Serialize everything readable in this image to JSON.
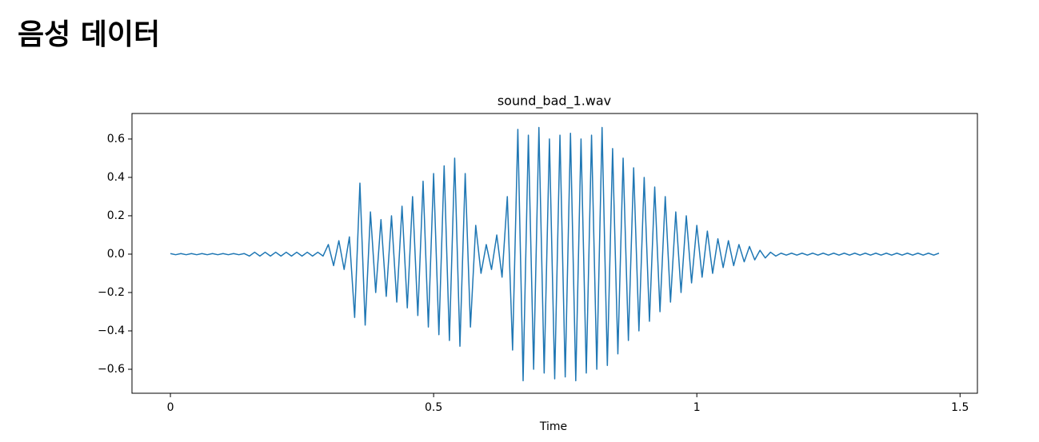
{
  "header": {
    "title": "음성 데이터"
  },
  "chart_data": {
    "type": "line",
    "title": "sound_bad_1.wav",
    "xlabel": "Time",
    "xlim": [
      -0.073,
      1.533
    ],
    "ylim": [
      -0.725,
      0.733
    ],
    "xticks": [
      0,
      0.5,
      1,
      1.5
    ],
    "yticks": [
      {
        "value": -0.6,
        "label": "−0.6"
      },
      {
        "value": -0.4,
        "label": "−0.4"
      },
      {
        "value": -0.2,
        "label": "−0.2"
      },
      {
        "value": 0,
        "label": "0.0"
      },
      0.2,
      0.4,
      0.6
    ],
    "grid": false,
    "series": [
      {
        "color": "#1f77b4",
        "x": [
          0,
          0.01,
          0.02,
          0.03,
          0.04,
          0.05,
          0.06,
          0.07,
          0.08,
          0.09,
          0.1,
          0.11,
          0.12,
          0.13,
          0.14,
          0.15,
          0.16,
          0.17,
          0.18,
          0.19,
          0.2,
          0.21,
          0.22,
          0.23,
          0.24,
          0.25,
          0.26,
          0.27,
          0.28,
          0.29,
          0.3,
          0.31,
          0.32,
          0.33,
          0.34,
          0.35,
          0.36,
          0.37,
          0.38,
          0.39,
          0.4,
          0.41,
          0.42,
          0.43,
          0.44,
          0.45,
          0.46,
          0.47,
          0.48,
          0.49,
          0.5,
          0.51,
          0.52,
          0.53,
          0.54,
          0.55,
          0.56,
          0.57,
          0.58,
          0.59,
          0.6,
          0.61,
          0.62,
          0.63,
          0.64,
          0.65,
          0.66,
          0.67,
          0.68,
          0.69,
          0.7,
          0.71,
          0.72,
          0.73,
          0.74,
          0.75,
          0.76,
          0.77,
          0.78,
          0.79,
          0.8,
          0.81,
          0.82,
          0.83,
          0.84,
          0.85,
          0.86,
          0.87,
          0.88,
          0.89,
          0.9,
          0.91,
          0.92,
          0.93,
          0.94,
          0.95,
          0.96,
          0.97,
          0.98,
          0.99,
          1,
          1.01,
          1.02,
          1.03,
          1.04,
          1.05,
          1.06,
          1.07,
          1.08,
          1.09,
          1.1,
          1.11,
          1.12,
          1.13,
          1.14,
          1.15,
          1.16,
          1.17,
          1.18,
          1.19,
          1.2,
          1.21,
          1.22,
          1.23,
          1.24,
          1.25,
          1.26,
          1.27,
          1.28,
          1.29,
          1.3,
          1.31,
          1.32,
          1.33,
          1.34,
          1.35,
          1.36,
          1.37,
          1.38,
          1.39,
          1.4,
          1.41,
          1.42,
          1.43,
          1.44,
          1.45,
          1.46
        ],
        "values": [
          0.003,
          -0.003,
          0.003,
          -0.003,
          0.003,
          -0.003,
          0.003,
          -0.003,
          0.003,
          -0.003,
          0.003,
          -0.003,
          0.003,
          -0.003,
          0.003,
          -0.01,
          0.01,
          -0.01,
          0.01,
          -0.01,
          0.01,
          -0.01,
          0.01,
          -0.01,
          0.01,
          -0.01,
          0.01,
          -0.01,
          0.01,
          -0.01,
          0.05,
          -0.06,
          0.07,
          -0.08,
          0.09,
          -0.33,
          0.37,
          -0.37,
          0.22,
          -0.2,
          0.18,
          -0.22,
          0.2,
          -0.25,
          0.25,
          -0.28,
          0.3,
          -0.32,
          0.38,
          -0.38,
          0.42,
          -0.42,
          0.46,
          -0.45,
          0.5,
          -0.48,
          0.42,
          -0.38,
          0.15,
          -0.1,
          0.05,
          -0.08,
          0.1,
          -0.12,
          0.3,
          -0.5,
          0.65,
          -0.66,
          0.62,
          -0.6,
          0.66,
          -0.62,
          0.6,
          -0.65,
          0.62,
          -0.64,
          0.63,
          -0.66,
          0.6,
          -0.62,
          0.62,
          -0.6,
          0.66,
          -0.58,
          0.55,
          -0.52,
          0.5,
          -0.45,
          0.45,
          -0.4,
          0.4,
          -0.35,
          0.35,
          -0.3,
          0.3,
          -0.25,
          0.22,
          -0.2,
          0.2,
          -0.15,
          0.15,
          -0.12,
          0.12,
          -0.1,
          0.08,
          -0.07,
          0.07,
          -0.06,
          0.05,
          -0.04,
          0.04,
          -0.03,
          0.02,
          -0.02,
          0.01,
          -0.01,
          0.005,
          -0.005,
          0.005,
          -0.005,
          0.005,
          -0.005,
          0.005,
          -0.005,
          0.005,
          -0.005,
          0.005,
          -0.005,
          0.005,
          -0.005,
          0.005,
          -0.005,
          0.005,
          -0.005,
          0.005,
          -0.005,
          0.005,
          -0.005,
          0.005,
          -0.005,
          0.005,
          -0.005,
          0.005,
          -0.005,
          0.005,
          -0.005,
          0.005
        ]
      }
    ]
  }
}
